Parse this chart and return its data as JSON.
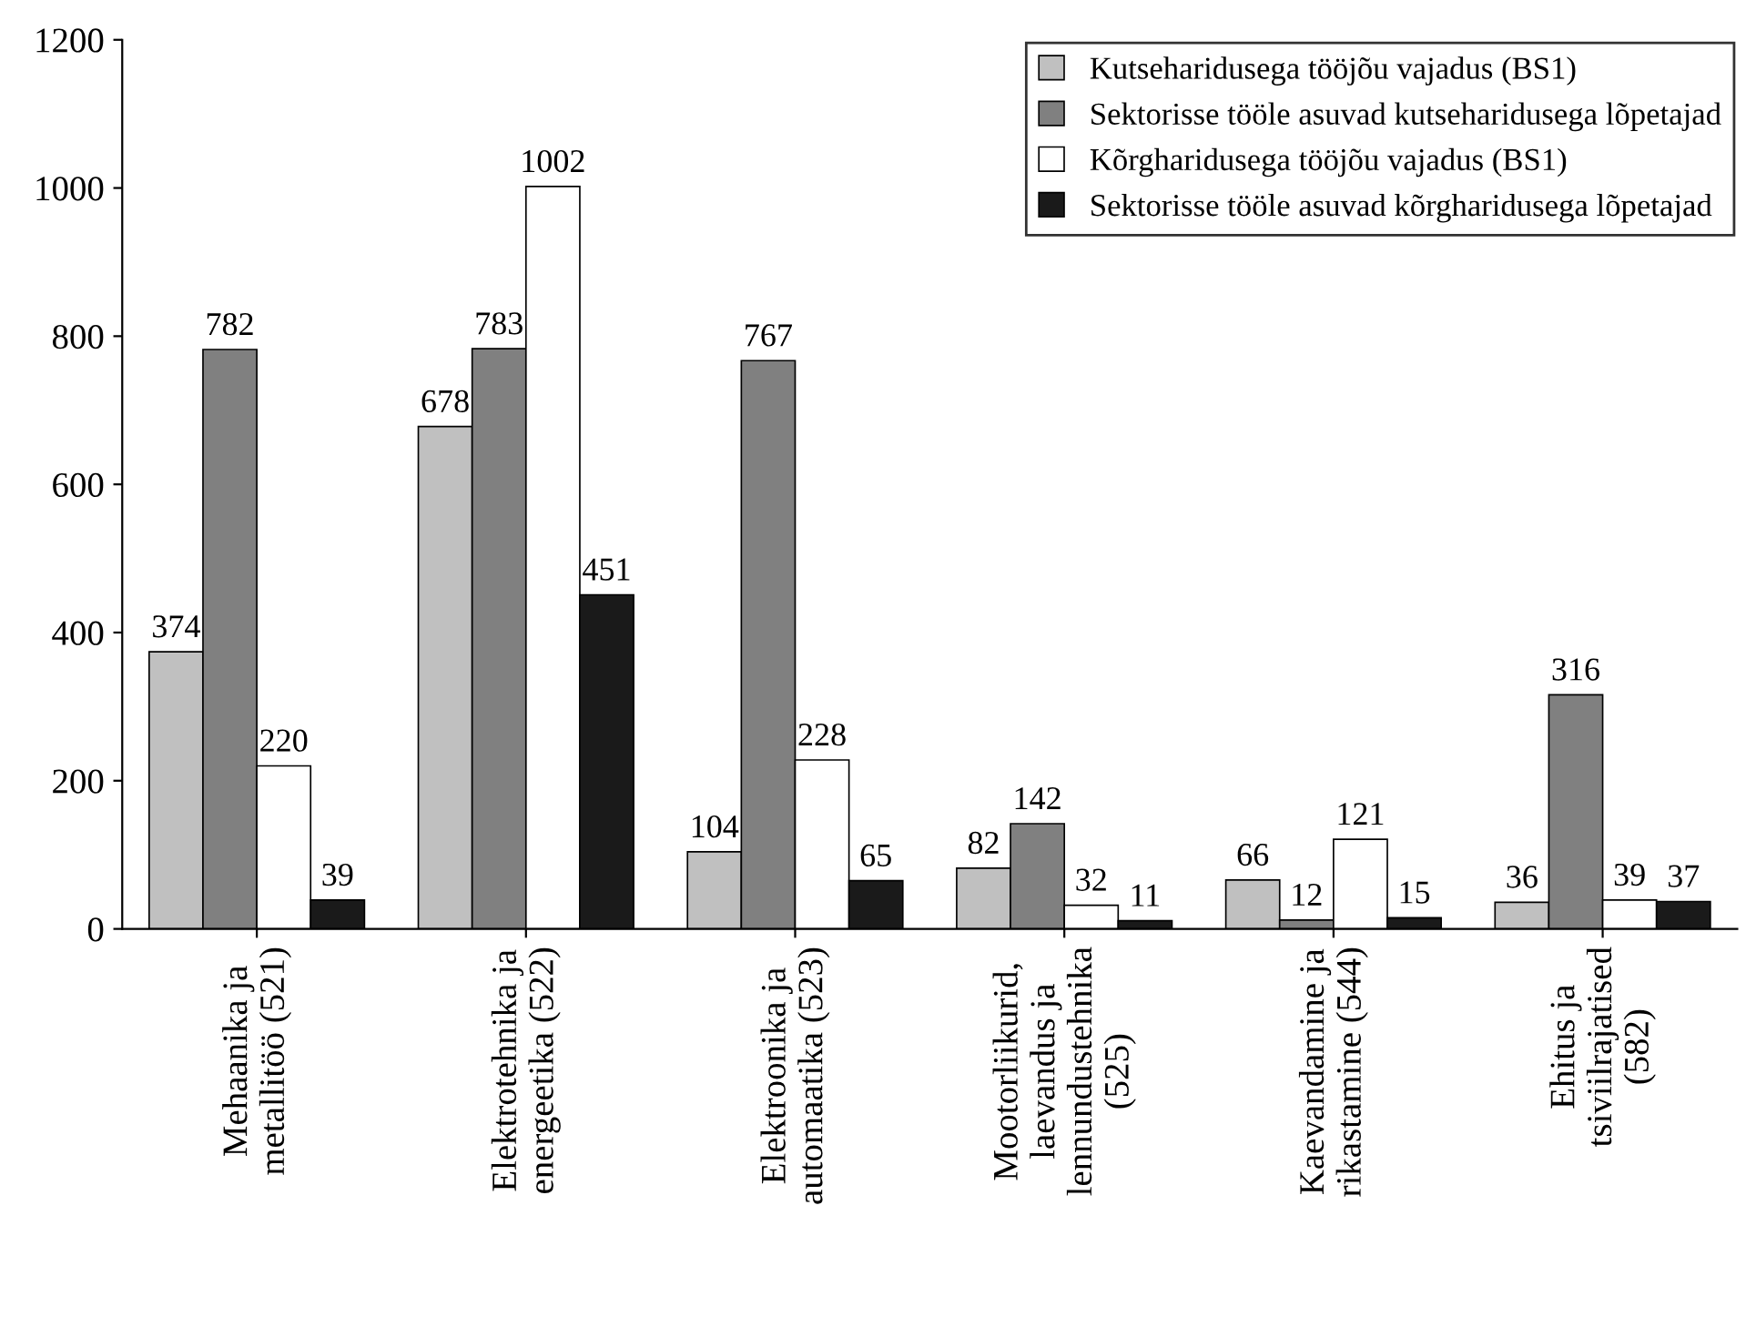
{
  "chart_data": {
    "type": "bar",
    "categories": [
      "Mehaanika ja\nmetallitöö (521)",
      "Elektrotehnika ja\nenergeetika (522)",
      "Elektroonika ja\nautomaatika (523)",
      "Mootorliikurid,\nlaevandus ja\nlennundustehnika\n(525)",
      "Kaevandamine ja\nrikastamine (544)",
      "Ehitus ja\ntsiviilrajatised\n(582)"
    ],
    "series": [
      {
        "name": "Kutseharidusega tööjõu vajadus (BS1)",
        "color": "#c0c0c0",
        "values": [
          374,
          678,
          104,
          82,
          66,
          36
        ]
      },
      {
        "name": "Sektorisse tööle asuvad kutseharidusega lõpetajad",
        "color": "#808080",
        "values": [
          782,
          783,
          767,
          142,
          12,
          316
        ]
      },
      {
        "name": "Kõrgharidusega tööjõu vajadus (BS1)",
        "color": "#ffffff",
        "values": [
          220,
          1002,
          228,
          32,
          121,
          39
        ]
      },
      {
        "name": "Sektorisse tööle asuvad kõrgharidusega lõpetajad",
        "color": "#1a1a1a",
        "values": [
          39,
          451,
          65,
          11,
          15,
          37
        ]
      }
    ],
    "ylim": [
      0,
      1200
    ],
    "yticks": [
      0,
      200,
      400,
      600,
      800,
      1000,
      1200
    ],
    "data_labels": true,
    "legend": "top right",
    "grid": false
  }
}
